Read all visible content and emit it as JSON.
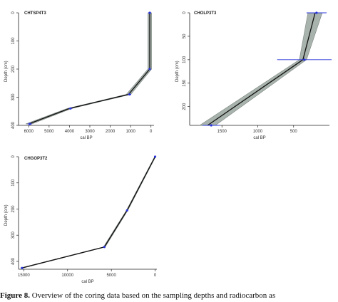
{
  "caption": {
    "label": "Figure 8.",
    "text": "Overview of the coring data based on the sampling depths and radiocarbon as"
  },
  "chart_data": [
    {
      "type": "line",
      "title": "CHTSP4T3",
      "xlabel": "cal BP",
      "ylabel": "Depth (cm)",
      "xlim": [
        6500,
        -150
      ],
      "ylim": [
        0,
        400
      ],
      "xticks": [
        6000,
        5000,
        4000,
        3000,
        2000,
        1000,
        0
      ],
      "yticks": [
        0,
        100,
        200,
        300,
        400
      ],
      "x": [
        60,
        60,
        1100,
        4000,
        6000
      ],
      "y": [
        0,
        200,
        290,
        340,
        395
      ],
      "band_half_width": [
        90,
        90,
        110,
        110,
        150
      ],
      "dates": [
        {
          "x": 60,
          "y": 0,
          "err": 70
        },
        {
          "x": 60,
          "y": 200,
          "err": 50
        },
        {
          "x": 1050,
          "y": 290,
          "err": 80
        },
        {
          "x": 3950,
          "y": 340,
          "err": 90
        },
        {
          "x": 5950,
          "y": 395,
          "err": 110
        }
      ]
    },
    {
      "type": "line",
      "title": "CHOLP3T3",
      "xlabel": "cal BP",
      "ylabel": "Depth (cm)",
      "xlim": [
        1950,
        0
      ],
      "ylim": [
        0,
        240
      ],
      "xticks": [
        1500,
        1000,
        500
      ],
      "yticks": [
        0,
        50,
        100,
        150,
        200
      ],
      "x": [
        200,
        370,
        1700
      ],
      "y": [
        0,
        100,
        240
      ],
      "band_half_width": [
        100,
        50,
        110
      ],
      "dates": [
        {
          "x": 180,
          "y": 0,
          "err": 140
        },
        {
          "x": 350,
          "y": 100,
          "err": 380
        },
        {
          "x": 1650,
          "y": 240,
          "err": 120
        }
      ]
    },
    {
      "type": "line",
      "title": "CHGOP3T2",
      "xlabel": "cal BP",
      "ylabel": "Depth (cm)",
      "xlim": [
        15600,
        -200
      ],
      "ylim": [
        0,
        430
      ],
      "xticks": [
        15000,
        10000,
        5000,
        0
      ],
      "yticks": [
        0,
        100,
        200,
        300,
        400
      ],
      "x": [
        0,
        3200,
        5800,
        15200
      ],
      "y": [
        0,
        205,
        345,
        425
      ],
      "band_half_width": [
        60,
        80,
        100,
        160
      ],
      "dates": [
        {
          "x": 0,
          "y": 0,
          "err": 60
        },
        {
          "x": 3200,
          "y": 205,
          "err": 60
        },
        {
          "x": 5800,
          "y": 345,
          "err": 120
        },
        {
          "x": 15200,
          "y": 425,
          "err": 150
        }
      ]
    }
  ],
  "colors": {
    "band": "#a9b3ad",
    "band_edge": "#7d8780",
    "line": "#111111",
    "date": "#2a35d8",
    "axis": "#222222"
  }
}
